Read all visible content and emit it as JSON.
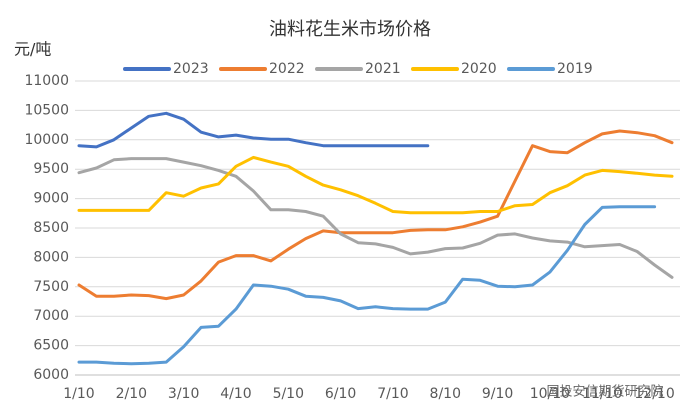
{
  "chart_data": {
    "type": "line",
    "title": "油料花生米市场价格",
    "y_label": "元/吨",
    "categories": [
      "1/10",
      null,
      null,
      "2/10",
      null,
      null,
      "3/10",
      null,
      null,
      "4/10",
      null,
      null,
      "5/10",
      null,
      null,
      "6/10",
      null,
      null,
      "7/10",
      null,
      null,
      "8/10",
      null,
      null,
      "9/10",
      null,
      null,
      "10/10",
      null,
      null,
      "11/10",
      null,
      null,
      "12/10",
      null
    ],
    "series": [
      {
        "name": "2023",
        "color": "#4472c4",
        "values": [
          9900,
          9880,
          10000,
          10200,
          10400,
          10450,
          10350,
          10130,
          10050,
          10080,
          10030,
          10010,
          10010,
          9950,
          9900,
          9900,
          9900,
          9900,
          9900,
          9900,
          9900,
          null,
          null,
          null,
          null,
          null,
          null,
          null,
          null,
          null,
          null,
          null,
          null,
          null,
          null
        ]
      },
      {
        "name": "2022",
        "color": "#ed7d31",
        "values": [
          7530,
          7340,
          7340,
          7360,
          7350,
          7300,
          7360,
          7600,
          7920,
          8030,
          8030,
          7940,
          8140,
          8320,
          8450,
          8420,
          8420,
          8420,
          8420,
          8460,
          8470,
          8470,
          8520,
          8600,
          8700,
          9300,
          9900,
          9800,
          9780,
          9950,
          10100,
          10150,
          10120,
          10070,
          9950
        ]
      },
      {
        "name": "2021",
        "color": "#a5a5a5",
        "values": [
          9440,
          9520,
          9660,
          9680,
          9680,
          9680,
          9620,
          9560,
          9480,
          9380,
          9130,
          8810,
          8810,
          8780,
          8700,
          8400,
          8250,
          8230,
          8170,
          8060,
          8090,
          8150,
          8160,
          8240,
          8380,
          8400,
          8330,
          8280,
          8260,
          8180,
          8200,
          8220,
          8100,
          7870,
          7660
        ]
      },
      {
        "name": "2020",
        "color": "#ffc000",
        "values": [
          8800,
          8800,
          8800,
          8800,
          8800,
          9100,
          9040,
          9180,
          9250,
          9550,
          9700,
          9620,
          9550,
          9380,
          9230,
          9150,
          9050,
          8920,
          8780,
          8760,
          8760,
          8760,
          8760,
          8780,
          8780,
          8880,
          8900,
          9100,
          9220,
          9400,
          9480,
          9460,
          9430,
          9400,
          9380
        ]
      },
      {
        "name": "2019",
        "color": "#5b9bd5",
        "values": [
          6220,
          6220,
          6200,
          6190,
          6200,
          6220,
          6480,
          6810,
          6830,
          7120,
          7530,
          7510,
          7460,
          7340,
          7320,
          7260,
          7130,
          7160,
          7130,
          7120,
          7120,
          7240,
          7630,
          7610,
          7510,
          7500,
          7530,
          7750,
          8120,
          8560,
          8850,
          8860,
          8860,
          8860,
          null
        ]
      }
    ],
    "ylim": [
      6000,
      11000
    ],
    "yticks": [
      6000,
      6500,
      7000,
      7500,
      8000,
      8500,
      9000,
      9500,
      10000,
      10500,
      11000
    ],
    "grid": true,
    "legend": "top",
    "watermark": "国投安信期货研究院"
  }
}
